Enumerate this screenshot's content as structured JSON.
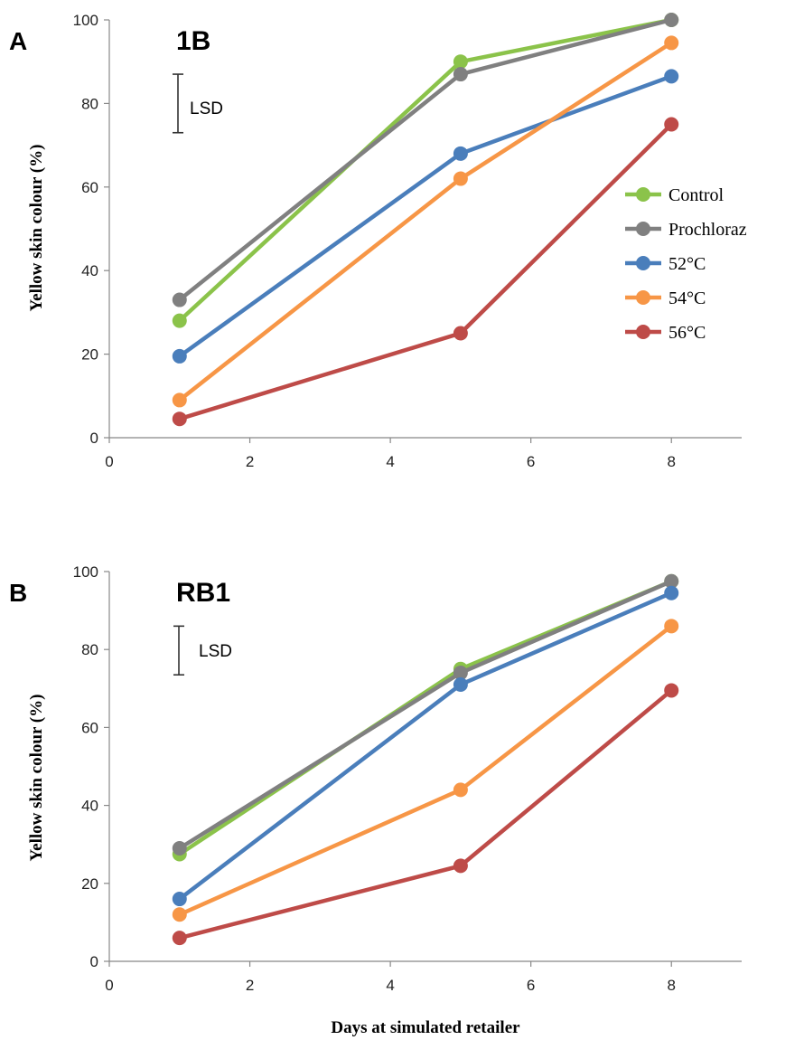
{
  "chart_data": [
    {
      "type": "line",
      "panel_letter": "A",
      "title": "1B",
      "xlabel": "",
      "ylabel": "Yellow skin colour (%)",
      "xlim": [
        0,
        9
      ],
      "ylim": [
        0,
        100
      ],
      "x_ticks": [
        "0",
        "2",
        "4",
        "6",
        "8"
      ],
      "y_ticks": [
        "0",
        "20",
        "40",
        "60",
        "80",
        "100"
      ],
      "lsd_label": "LSD",
      "lsd_range": [
        73,
        87
      ],
      "legend": true,
      "legend_position": "right",
      "x": [
        1,
        5,
        8
      ],
      "series": [
        {
          "name": "Control",
          "color": "#8bc34a",
          "values": [
            28,
            90,
            100
          ]
        },
        {
          "name": "Prochloraz",
          "color": "#808080",
          "values": [
            33,
            87,
            100
          ]
        },
        {
          "name": "52°C",
          "color": "#4a7ebb",
          "values": [
            19.5,
            68,
            86.5
          ]
        },
        {
          "name": "54°C",
          "color": "#f79646",
          "values": [
            9,
            62,
            94.5
          ]
        },
        {
          "name": "56°C",
          "color": "#be4b48",
          "values": [
            4.5,
            25,
            75
          ]
        }
      ]
    },
    {
      "type": "line",
      "panel_letter": "B",
      "title": "RB1",
      "xlabel": "Days at simulated retailer",
      "ylabel": "Yellow skin colour (%)",
      "xlim": [
        0,
        9
      ],
      "ylim": [
        0,
        100
      ],
      "x_ticks": [
        "0",
        "2",
        "4",
        "6",
        "8"
      ],
      "y_ticks": [
        "0",
        "20",
        "40",
        "60",
        "80",
        "100"
      ],
      "lsd_label": "LSD",
      "lsd_range": [
        73.5,
        86
      ],
      "legend": false,
      "x": [
        1,
        5,
        8
      ],
      "series": [
        {
          "name": "Control",
          "color": "#8bc34a",
          "values": [
            27.5,
            75,
            97.5
          ]
        },
        {
          "name": "Prochloraz",
          "color": "#808080",
          "values": [
            29,
            74,
            97.5
          ]
        },
        {
          "name": "52°C",
          "color": "#4a7ebb",
          "values": [
            16,
            71,
            94.5
          ]
        },
        {
          "name": "54°C",
          "color": "#f79646",
          "values": [
            12,
            44,
            86
          ]
        },
        {
          "name": "56°C",
          "color": "#be4b48",
          "values": [
            6,
            24.5,
            69.5
          ]
        }
      ]
    }
  ]
}
